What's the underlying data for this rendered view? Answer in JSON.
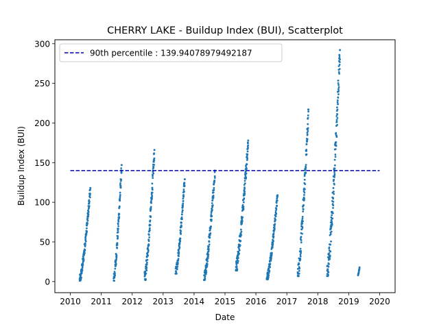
{
  "chart_data": {
    "type": "scatter",
    "title": "CHERRY LAKE - Buildup Index (BUI), Scatterplot",
    "xlabel": "Date",
    "ylabel": "Buildup Index (BUI)",
    "x_ticks": [
      "2010",
      "2011",
      "2012",
      "2013",
      "2014",
      "2015",
      "2016",
      "2017",
      "2018",
      "2019",
      "2020"
    ],
    "y_ticks": [
      "0",
      "50",
      "100",
      "150",
      "200",
      "250",
      "300"
    ],
    "xlim": [
      2009.5,
      2020.5
    ],
    "ylim": [
      -14,
      305
    ],
    "grid": false,
    "legend_position": "upper-left",
    "point_color": "#1f77b4",
    "reference_line": {
      "label": "90th percentile : 139.94078979492187",
      "value": 139.94078979492187,
      "x_start": 2010.0,
      "x_end": 2020.0,
      "color": "#0000aa",
      "style": "dashed"
    },
    "seasons": [
      {
        "year": 2010,
        "start": 2010.3,
        "end": 2010.65,
        "min": 1,
        "max": 118
      },
      {
        "year": 2011,
        "start": 2011.4,
        "end": 2011.66,
        "min": 1,
        "max": 147
      },
      {
        "year": 2012,
        "start": 2012.4,
        "end": 2012.72,
        "min": 2,
        "max": 166
      },
      {
        "year": 2013,
        "start": 2013.4,
        "end": 2013.7,
        "min": 10,
        "max": 129
      },
      {
        "year": 2014,
        "start": 2014.32,
        "end": 2014.68,
        "min": 2,
        "max": 140
      },
      {
        "year": 2015,
        "start": 2015.35,
        "end": 2015.75,
        "min": 14,
        "max": 178
      },
      {
        "year": 2016,
        "start": 2016.35,
        "end": 2016.7,
        "min": 3,
        "max": 109
      },
      {
        "year": 2017,
        "start": 2017.35,
        "end": 2017.7,
        "min": 7,
        "max": 217
      },
      {
        "year": 2018,
        "start": 2018.3,
        "end": 2018.72,
        "min": 7,
        "max": 292
      },
      {
        "year": 2019,
        "start": 2019.3,
        "end": 2019.35,
        "min": 8,
        "max": 18
      }
    ]
  }
}
